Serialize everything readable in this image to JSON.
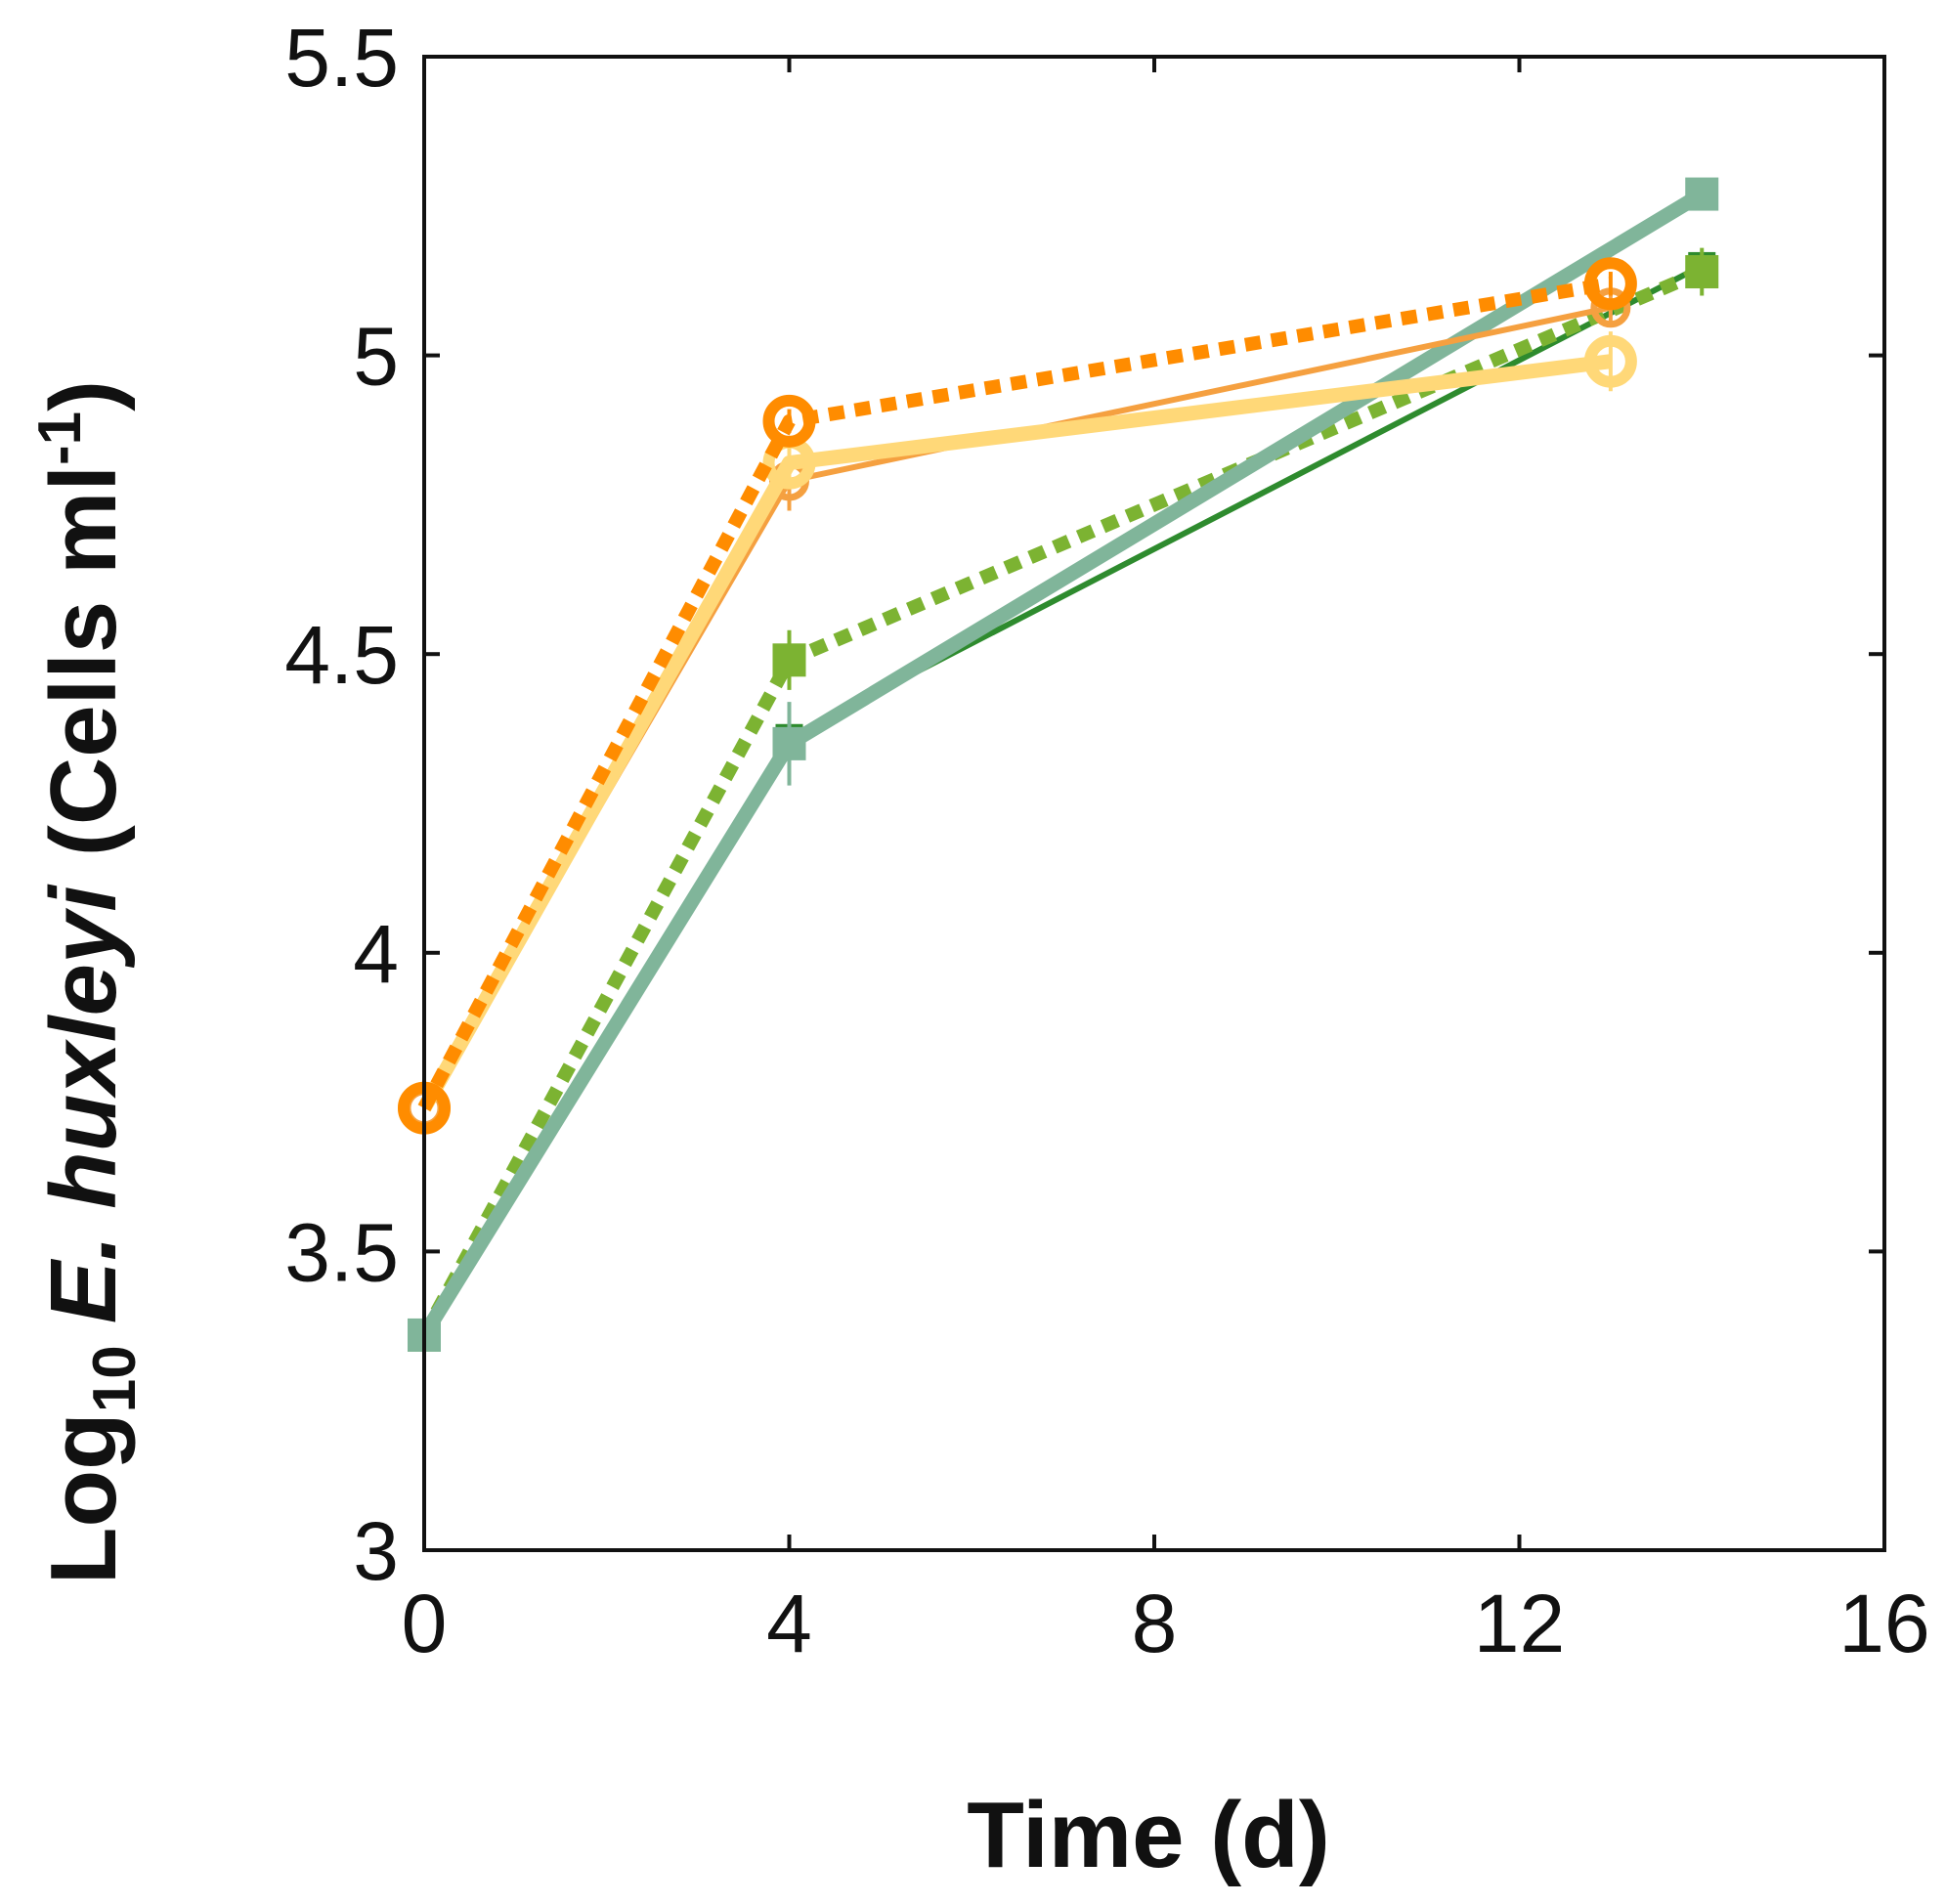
{
  "chart_data": {
    "type": "line",
    "title": "",
    "xlabel": "Time (d)",
    "ylabel": {
      "prefix": "Log",
      "subscript": "10",
      "species": "E. huxleyi",
      "unit_open": "(Cells ml",
      "unit_sup": "-1",
      "unit_close": ")"
    },
    "xlim": [
      0,
      16
    ],
    "ylim": [
      3,
      5.5
    ],
    "xticks": [
      0,
      4,
      8,
      12,
      16
    ],
    "xtick_labels": [
      "0",
      "4",
      "8",
      "12",
      "16"
    ],
    "yticks": [
      3,
      3.5,
      4,
      4.5,
      5,
      5.5
    ],
    "ytick_labels": [
      "3",
      "3.5",
      "4",
      "4.5",
      "5",
      "5.5"
    ],
    "grid": false,
    "legend": "none",
    "series": [
      {
        "name": "dark green thin solid",
        "color": "#2e8b2e",
        "dash": "solid",
        "weight": "thin",
        "marker": "square",
        "points": [
          {
            "x": 0,
            "y": 3.36,
            "err": 0
          },
          {
            "x": 4,
            "y": 4.36,
            "err": 0.05
          },
          {
            "x": 14,
            "y": 5.15,
            "err": 0.02
          }
        ]
      },
      {
        "name": "light green dotted",
        "color": "#7cb332",
        "dash": "dotted",
        "weight": "thick",
        "marker": "square",
        "points": [
          {
            "x": 0,
            "y": 3.36,
            "err": 0
          },
          {
            "x": 4,
            "y": 4.49,
            "err": 0.05
          },
          {
            "x": 14,
            "y": 5.14,
            "err": 0.04
          }
        ]
      },
      {
        "name": "grey green thick solid",
        "color": "#80b59a",
        "dash": "solid",
        "weight": "thick",
        "marker": "square",
        "points": [
          {
            "x": 0,
            "y": 3.36,
            "err": 0
          },
          {
            "x": 4,
            "y": 4.35,
            "err": 0.07
          },
          {
            "x": 14,
            "y": 5.27,
            "err": 0.01
          }
        ]
      },
      {
        "name": "orange thin solid",
        "color": "#f5a040",
        "dash": "solid",
        "weight": "thin",
        "marker": "circle",
        "points": [
          {
            "x": 0,
            "y": 3.74,
            "err": 0
          },
          {
            "x": 4,
            "y": 4.79,
            "err": 0.05
          },
          {
            "x": 13,
            "y": 5.08,
            "err": 0.03
          }
        ]
      },
      {
        "name": "yellow thick solid",
        "color": "#ffd878",
        "dash": "solid",
        "weight": "thick",
        "marker": "circle",
        "points": [
          {
            "x": 0,
            "y": 3.74,
            "err": 0
          },
          {
            "x": 4,
            "y": 4.82,
            "err": 0.03
          },
          {
            "x": 13,
            "y": 4.99,
            "err": 0.05
          }
        ]
      },
      {
        "name": "orange dotted",
        "color": "#ff8c00",
        "dash": "dotted",
        "weight": "thick",
        "marker": "circle",
        "points": [
          {
            "x": 0,
            "y": 3.74,
            "err": 0
          },
          {
            "x": 4,
            "y": 4.89,
            "err": 0.02
          },
          {
            "x": 13,
            "y": 5.12,
            "err": 0.02
          }
        ]
      }
    ]
  }
}
